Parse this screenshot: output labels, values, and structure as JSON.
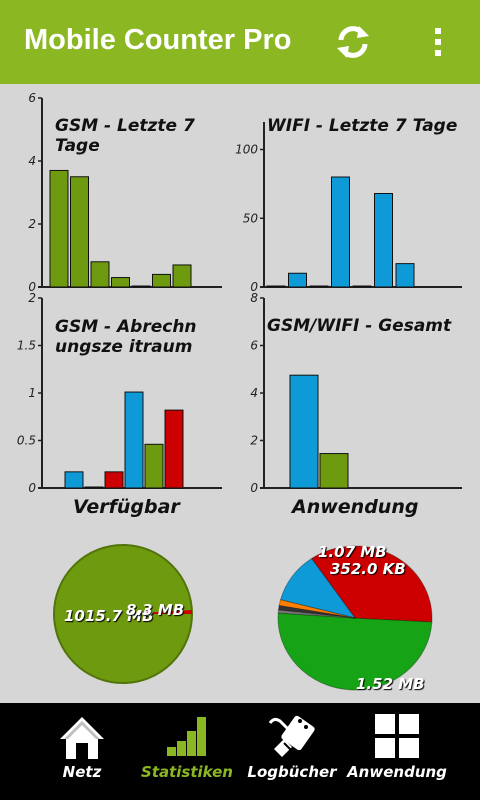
{
  "app": {
    "title": "Mobile Counter Pro"
  },
  "charts": [
    {
      "title": "GSM - Letzte 7 Tage",
      "yticks": [
        "6",
        "4",
        "2",
        "0"
      ],
      "ymax": 6,
      "bars": [
        {
          "v": 3.7,
          "c": "#6e9a10"
        },
        {
          "v": 3.5,
          "c": "#6e9a10"
        },
        {
          "v": 0.8,
          "c": "#6e9a10"
        },
        {
          "v": 0.3,
          "c": "#6e9a10"
        },
        {
          "v": 0.02,
          "c": "#6e9a10"
        },
        {
          "v": 0.4,
          "c": "#6e9a10"
        },
        {
          "v": 0.7,
          "c": "#6e9a10"
        }
      ]
    },
    {
      "title": "WIFI - Letzte 7 Tage",
      "yticks": [
        "100",
        "50",
        "0"
      ],
      "ymax": 120,
      "bars": [
        {
          "v": 0.5,
          "c": "#0e9ad7"
        },
        {
          "v": 10,
          "c": "#0e9ad7"
        },
        {
          "v": 0.5,
          "c": "#0e9ad7"
        },
        {
          "v": 80,
          "c": "#0e9ad7"
        },
        {
          "v": 0.5,
          "c": "#0e9ad7"
        },
        {
          "v": 68,
          "c": "#0e9ad7"
        },
        {
          "v": 17,
          "c": "#0e9ad7"
        }
      ]
    },
    {
      "title": "GSM - Abrechnungsze itraum",
      "yticks": [
        "2",
        "1.5",
        "1",
        "0.5",
        "0"
      ],
      "ymax": 2,
      "bars": [
        {
          "v": 0.17,
          "c": "#0e9ad7"
        },
        {
          "v": 0.01,
          "c": "#6e9a10"
        },
        {
          "v": 0.17,
          "c": "#cc0000"
        },
        {
          "v": 1.01,
          "c": "#0e9ad7"
        },
        {
          "v": 0.46,
          "c": "#6e9a10"
        },
        {
          "v": 0.82,
          "c": "#cc0000"
        }
      ]
    },
    {
      "title": "GSM/WIFI - Gesamt",
      "yticks": [
        "8",
        "6",
        "4",
        "2",
        "0"
      ],
      "ymax": 8,
      "bars": [
        {
          "v": 4.75,
          "c": "#0e9ad7"
        },
        {
          "v": 1.45,
          "c": "#6e9a10"
        }
      ]
    }
  ],
  "sections": {
    "left": "Verfügbar",
    "right": "Anwendung"
  },
  "pie_left": {
    "labels": [
      "1015.7 MB",
      "8.3 MB"
    ],
    "colors": [
      "#6e9a10",
      "#cc0000"
    ]
  },
  "pie_right": {
    "labels": [
      "1.07 MB",
      "352.0 KB",
      "1.52 MB"
    ],
    "slices": [
      {
        "v": 1.52,
        "c": "#16a316"
      },
      {
        "v": 1.07,
        "c": "#cc0000"
      },
      {
        "v": 0.344,
        "c": "#0e9ad7"
      },
      {
        "v": 0.04,
        "c": "#ff7f00"
      },
      {
        "v": 0.03,
        "c": "#333333"
      },
      {
        "v": 0.02,
        "c": "#777777"
      }
    ]
  },
  "nav": [
    {
      "label": "Netz",
      "icon": "home-icon",
      "active": false
    },
    {
      "label": "Statistiken",
      "icon": "bar-chart-icon",
      "active": true
    },
    {
      "label": "Logbücher",
      "icon": "log-icon",
      "active": false
    },
    {
      "label": "Anwendung",
      "icon": "grid-icon",
      "active": false
    }
  ],
  "colors": {
    "accent": "#8bb822",
    "green": "#6e9a10",
    "blue": "#0e9ad7",
    "red": "#cc0000"
  }
}
